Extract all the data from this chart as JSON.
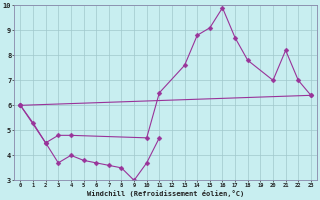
{
  "xlabel": "Windchill (Refroidissement éolien,°C)",
  "bg_color": "#c8eef0",
  "line_color": "#993399",
  "grid_color": "#a0c8cc",
  "axis_color": "#8888aa",
  "xlim": [
    -0.5,
    23.5
  ],
  "ylim": [
    3,
    10
  ],
  "xticks": [
    0,
    1,
    2,
    3,
    4,
    5,
    6,
    7,
    8,
    9,
    10,
    11,
    12,
    13,
    14,
    15,
    16,
    17,
    18,
    19,
    20,
    21,
    22,
    23
  ],
  "yticks": [
    3,
    4,
    5,
    6,
    7,
    8,
    9,
    10
  ],
  "line1_x": [
    0,
    1,
    2,
    3,
    4,
    5,
    6,
    7,
    8,
    9,
    10,
    11
  ],
  "line1_y": [
    6.0,
    5.3,
    4.5,
    3.7,
    4.0,
    3.8,
    3.7,
    3.6,
    3.5,
    3.0,
    3.7,
    4.7
  ],
  "line2_x": [
    0,
    2,
    3,
    4,
    10,
    11,
    13,
    14,
    15,
    16,
    17,
    18,
    20,
    21,
    22,
    23
  ],
  "line2_y": [
    6.0,
    4.5,
    4.8,
    4.8,
    4.7,
    6.5,
    7.6,
    8.8,
    9.1,
    9.9,
    8.7,
    7.8,
    7.0,
    8.2,
    7.0,
    6.4
  ],
  "line3_x": [
    0,
    23
  ],
  "line3_y": [
    6.0,
    6.4
  ]
}
